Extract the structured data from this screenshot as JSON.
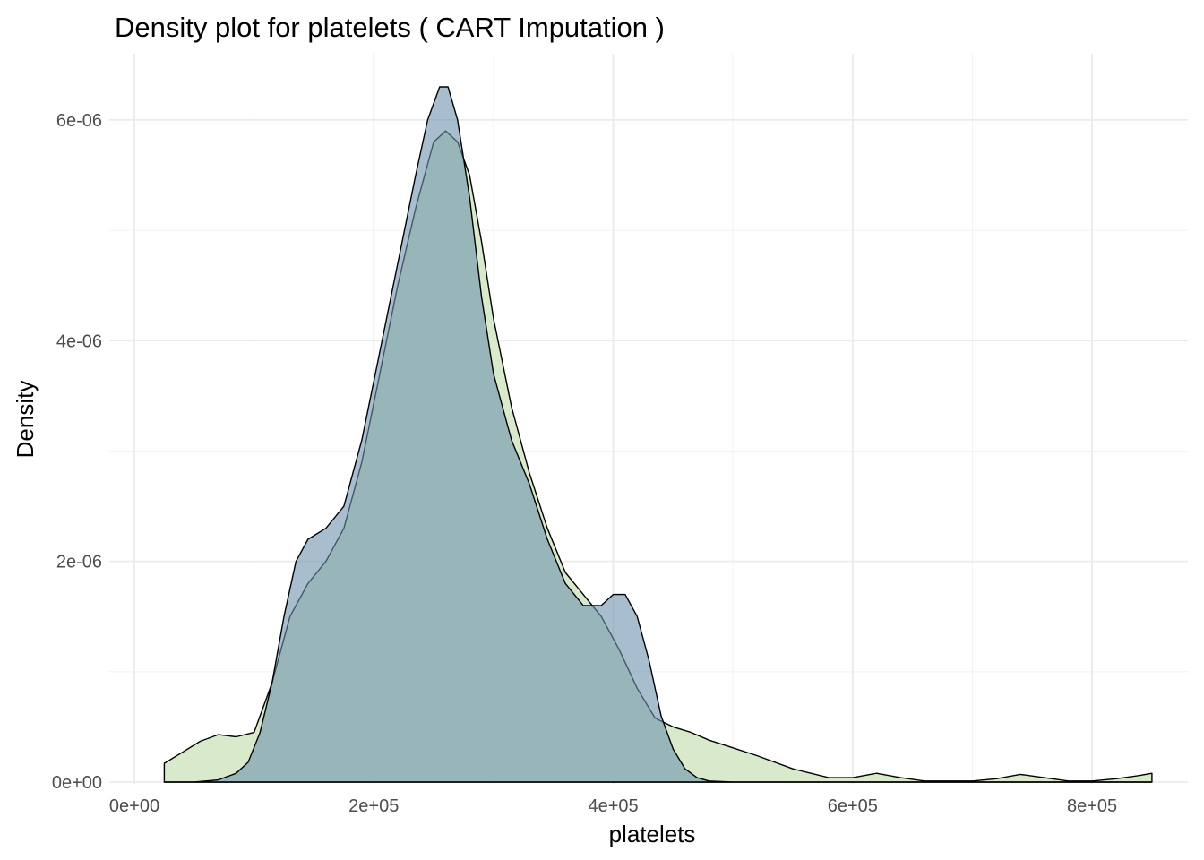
{
  "chart_data": {
    "type": "area",
    "title": "Density plot for platelets ( CART Imputation )",
    "xlabel": "platelets",
    "ylabel": "Density",
    "xlim": [
      0,
      880000
    ],
    "ylim": [
      -1.6e-08,
      6.6e-06
    ],
    "x_ticks": [
      {
        "value": 0,
        "label": "0e+00"
      },
      {
        "value": 200000,
        "label": "2e+05"
      },
      {
        "value": 400000,
        "label": "4e+05"
      },
      {
        "value": 600000,
        "label": "6e+05"
      },
      {
        "value": 800000,
        "label": "8e+05"
      }
    ],
    "y_ticks": [
      {
        "value": 0,
        "label": "0e+00"
      },
      {
        "value": 2e-06,
        "label": "2e-06"
      },
      {
        "value": 4e-06,
        "label": "4e-06"
      },
      {
        "value": 6e-06,
        "label": "6e-06"
      }
    ],
    "grid": true,
    "legend": "none",
    "series": [
      {
        "color": "#d6e8c9",
        "x": [
          25000,
          40000,
          55000,
          70000,
          85000,
          100000,
          115000,
          130000,
          145000,
          160000,
          175000,
          190000,
          205000,
          220000,
          235000,
          250000,
          260000,
          270000,
          280000,
          290000,
          300000,
          315000,
          330000,
          345000,
          360000,
          375000,
          390000,
          405000,
          420000,
          435000,
          450000,
          465000,
          480000,
          500000,
          520000,
          550000,
          580000,
          600000,
          620000,
          640000,
          660000,
          680000,
          700000,
          720000,
          740000,
          760000,
          780000,
          800000,
          820000,
          840000,
          850000
        ],
        "y": [
          1.7e-07,
          2.7e-07,
          3.7e-07,
          4.3e-07,
          4.1e-07,
          4.5e-07,
          9e-07,
          1.5e-06,
          1.8e-06,
          2e-06,
          2.3e-06,
          2.9e-06,
          3.7e-06,
          4.5e-06,
          5.2e-06,
          5.8e-06,
          5.9e-06,
          5.8e-06,
          5.5e-06,
          4.9e-06,
          4.2e-06,
          3.4e-06,
          2.8e-06,
          2.3e-06,
          1.9e-06,
          1.7e-06,
          1.5e-06,
          1.2e-06,
          8.5e-07,
          5.8e-07,
          5e-07,
          4.5e-07,
          3.8e-07,
          3.1e-07,
          2.4e-07,
          1.2e-07,
          4e-08,
          4e-08,
          8e-08,
          4e-08,
          1e-08,
          1e-08,
          1e-08,
          3e-08,
          7e-08,
          4e-08,
          1e-08,
          1e-08,
          3e-08,
          6e-08,
          8e-08
        ]
      },
      {
        "color": "#6e93ae",
        "x": [
          25000,
          50000,
          70000,
          85000,
          95000,
          105000,
          115000,
          125000,
          135000,
          145000,
          160000,
          175000,
          190000,
          205000,
          220000,
          235000,
          245000,
          255000,
          262000,
          270000,
          280000,
          290000,
          300000,
          315000,
          330000,
          345000,
          360000,
          375000,
          390000,
          400000,
          410000,
          420000,
          430000,
          440000,
          450000,
          460000,
          470000,
          480000,
          500000,
          550000,
          600000,
          700000,
          850000
        ],
        "y": [
          0,
          0,
          2e-08,
          8e-08,
          1.8e-07,
          4.5e-07,
          9e-07,
          1.5e-06,
          2e-06,
          2.2e-06,
          2.3e-06,
          2.5e-06,
          3.1e-06,
          3.9e-06,
          4.7e-06,
          5.5e-06,
          6e-06,
          6.3e-06,
          6.3e-06,
          6e-06,
          5.3e-06,
          4.4e-06,
          3.7e-06,
          3.1e-06,
          2.7e-06,
          2.2e-06,
          1.8e-06,
          1.6e-06,
          1.6e-06,
          1.7e-06,
          1.7e-06,
          1.5e-06,
          1.1e-06,
          6e-07,
          3e-07,
          1.2e-07,
          4e-08,
          1e-08,
          0,
          0,
          0,
          0,
          0
        ]
      }
    ]
  }
}
